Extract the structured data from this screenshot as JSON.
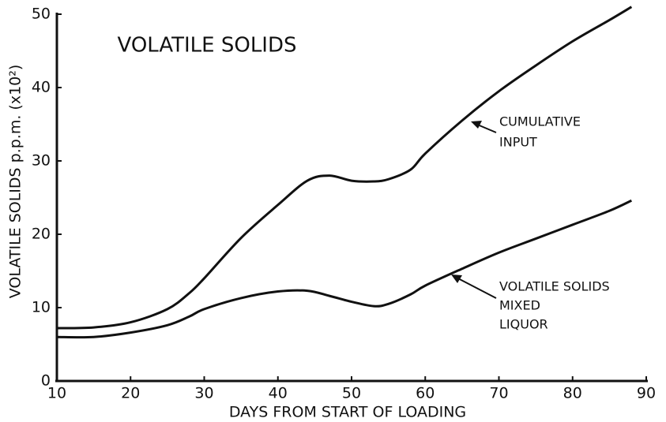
{
  "chart_data": {
    "type": "line",
    "title": "VOLATILE SOLIDS",
    "xlabel": "DAYS FROM START OF LOADING",
    "ylabel": "VOLATILE SOLIDS   p.p.m. (x10²)",
    "x": [
      10,
      15,
      20,
      25,
      28,
      30,
      35,
      40,
      44,
      47,
      50,
      53,
      55,
      58,
      60,
      65,
      70,
      75,
      80,
      85,
      88
    ],
    "series": [
      {
        "color": "#111111",
        "values": [
          7.2,
          7.3,
          8.0,
          9.8,
          12.0,
          14.0,
          19.5,
          24.0,
          27.3,
          28.0,
          27.3,
          27.2,
          27.5,
          28.8,
          31.0,
          35.5,
          39.5,
          43.0,
          46.3,
          49.2,
          51.0
        ]
      },
      {
        "color": "#111111",
        "values": [
          6.0,
          6.0,
          6.6,
          7.6,
          8.8,
          9.8,
          11.3,
          12.2,
          12.3,
          11.6,
          10.8,
          10.2,
          10.5,
          11.8,
          13.0,
          15.3,
          17.5,
          19.4,
          21.3,
          23.2,
          24.6
        ]
      }
    ],
    "annotations": [
      {
        "lines": [
          "CUMULATIVE",
          "INPUT"
        ]
      },
      {
        "lines": [
          "VOLATILE SOLIDS",
          "MIXED",
          "LIQUOR"
        ]
      }
    ],
    "xlim": [
      10,
      90
    ],
    "ylim": [
      0,
      50
    ],
    "xticks": [
      10,
      20,
      30,
      40,
      50,
      60,
      70,
      80,
      90
    ],
    "yticks": [
      0,
      10,
      20,
      30,
      40,
      50
    ],
    "grid": false
  }
}
